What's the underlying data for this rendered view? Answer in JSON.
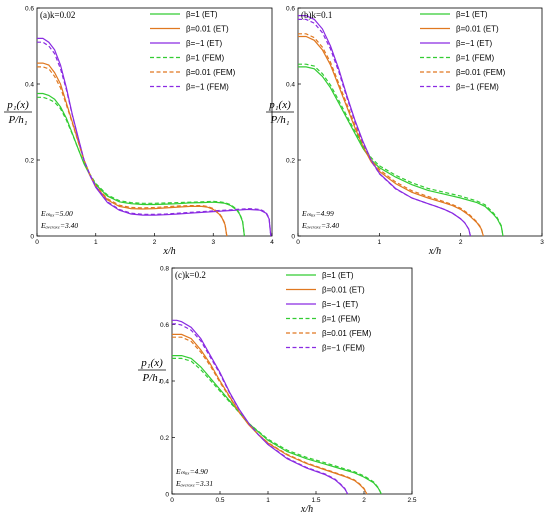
{
  "colors": {
    "beta_pos1": "#33cc33",
    "beta_001": "#e07820",
    "beta_neg1": "#8a2be2"
  },
  "chart_data": [
    {
      "type": "line",
      "title": "(a)k=0.02",
      "xlabel": "x/h",
      "ylabel_num": "p₁(x)",
      "ylabel_den": "P/h₁",
      "xlim": [
        0,
        4
      ],
      "ylim": [
        0,
        0.6
      ],
      "xticks": [
        "0",
        "1",
        "2",
        "3",
        "4"
      ],
      "yticks": [
        "0",
        "0.2",
        "0.4",
        "0.6"
      ],
      "emax": "Eₘₐₓ=5.00",
      "eavg": "Eₐᵥₑᵣₐₓₑ=3.40",
      "legend": [
        "β=1 (ET)",
        "β=0.01 (ET)",
        "β=−1 (ET)",
        "β=1 (FEM)",
        "β=0.01 (FEM)",
        "β=−1 (FEM)"
      ],
      "series": [
        {
          "name": "β=1 (ET)",
          "style": "solid",
          "color": "#33cc33",
          "x": [
            0,
            0.1,
            0.2,
            0.3,
            0.4,
            0.5,
            0.6,
            0.7,
            0.8,
            0.9,
            1.0,
            1.2,
            1.4,
            1.6,
            1.8,
            2.0,
            2.2,
            2.4,
            2.6,
            2.8,
            3.0,
            3.1,
            3.2,
            3.3,
            3.4,
            3.45,
            3.5,
            3.53
          ],
          "y": [
            0.375,
            0.375,
            0.37,
            0.36,
            0.34,
            0.31,
            0.27,
            0.23,
            0.19,
            0.16,
            0.135,
            0.105,
            0.09,
            0.085,
            0.083,
            0.083,
            0.084,
            0.085,
            0.087,
            0.088,
            0.089,
            0.088,
            0.086,
            0.08,
            0.068,
            0.057,
            0.038,
            0
          ]
        },
        {
          "name": "β=0.01 (ET)",
          "style": "solid",
          "color": "#e07820",
          "x": [
            0,
            0.1,
            0.2,
            0.3,
            0.4,
            0.5,
            0.6,
            0.7,
            0.8,
            0.9,
            1.0,
            1.2,
            1.4,
            1.6,
            1.8,
            2.0,
            2.2,
            2.4,
            2.6,
            2.8,
            2.9,
            3.0,
            3.1,
            3.15,
            3.2,
            3.23
          ],
          "y": [
            0.455,
            0.455,
            0.45,
            0.43,
            0.4,
            0.35,
            0.3,
            0.25,
            0.2,
            0.16,
            0.13,
            0.095,
            0.078,
            0.072,
            0.071,
            0.072,
            0.074,
            0.076,
            0.078,
            0.078,
            0.076,
            0.07,
            0.058,
            0.047,
            0.03,
            0
          ]
        },
        {
          "name": "β=−1 (ET)",
          "style": "solid",
          "color": "#8a2be2",
          "x": [
            0,
            0.1,
            0.2,
            0.3,
            0.4,
            0.5,
            0.6,
            0.7,
            0.8,
            0.9,
            1.0,
            1.2,
            1.4,
            1.6,
            1.8,
            2.0,
            2.2,
            2.4,
            2.6,
            2.8,
            3.0,
            3.2,
            3.4,
            3.6,
            3.8,
            3.9,
            3.95,
            3.98
          ],
          "y": [
            0.52,
            0.52,
            0.51,
            0.49,
            0.45,
            0.39,
            0.32,
            0.26,
            0.2,
            0.16,
            0.128,
            0.088,
            0.068,
            0.058,
            0.055,
            0.055,
            0.056,
            0.058,
            0.06,
            0.062,
            0.064,
            0.066,
            0.068,
            0.07,
            0.068,
            0.06,
            0.045,
            0
          ]
        },
        {
          "name": "β=1 (FEM)",
          "style": "dash",
          "color": "#33cc33",
          "x": [
            0,
            0.1,
            0.2,
            0.3,
            0.4,
            0.5,
            0.6,
            0.7,
            0.8,
            0.9,
            1.0,
            1.2,
            1.4,
            1.6,
            1.8,
            2.0,
            2.2,
            2.4,
            2.6,
            2.8,
            3.0,
            3.1,
            3.2,
            3.3,
            3.4,
            3.45,
            3.5,
            3.53
          ],
          "y": [
            0.365,
            0.365,
            0.36,
            0.352,
            0.335,
            0.305,
            0.268,
            0.23,
            0.192,
            0.163,
            0.138,
            0.108,
            0.093,
            0.088,
            0.086,
            0.086,
            0.087,
            0.088,
            0.089,
            0.09,
            0.091,
            0.09,
            0.088,
            0.082,
            0.07,
            0.059,
            0.04,
            0
          ]
        },
        {
          "name": "β=0.01 (FEM)",
          "style": "dash",
          "color": "#e07820",
          "x": [
            0,
            0.1,
            0.2,
            0.3,
            0.4,
            0.5,
            0.6,
            0.7,
            0.8,
            0.9,
            1.0,
            1.2,
            1.4,
            1.6,
            1.8,
            2.0,
            2.2,
            2.4,
            2.6,
            2.8,
            2.9,
            3.0,
            3.1,
            3.15,
            3.2,
            3.23
          ],
          "y": [
            0.445,
            0.445,
            0.44,
            0.42,
            0.39,
            0.345,
            0.297,
            0.248,
            0.2,
            0.162,
            0.132,
            0.098,
            0.081,
            0.075,
            0.074,
            0.075,
            0.077,
            0.079,
            0.08,
            0.08,
            0.078,
            0.072,
            0.06,
            0.049,
            0.032,
            0
          ]
        },
        {
          "name": "β=−1 (FEM)",
          "style": "dash",
          "color": "#8a2be2",
          "x": [
            0,
            0.1,
            0.2,
            0.3,
            0.4,
            0.5,
            0.6,
            0.7,
            0.8,
            0.9,
            1.0,
            1.2,
            1.4,
            1.6,
            1.8,
            2.0,
            2.2,
            2.4,
            2.6,
            2.8,
            3.0,
            3.2,
            3.4,
            3.6,
            3.8,
            3.9,
            3.95,
            3.98
          ],
          "y": [
            0.51,
            0.51,
            0.5,
            0.48,
            0.44,
            0.385,
            0.318,
            0.258,
            0.2,
            0.162,
            0.13,
            0.09,
            0.07,
            0.06,
            0.057,
            0.057,
            0.058,
            0.06,
            0.062,
            0.064,
            0.066,
            0.068,
            0.07,
            0.072,
            0.07,
            0.062,
            0.047,
            0
          ]
        }
      ]
    },
    {
      "type": "line",
      "title": "(b)k=0.1",
      "xlabel": "x/h",
      "ylabel_num": "p₁(x)",
      "ylabel_den": "P/h₁",
      "xlim": [
        0,
        3
      ],
      "ylim": [
        0,
        0.6
      ],
      "xticks": [
        "0",
        "1",
        "2",
        "3"
      ],
      "yticks": [
        "0",
        "0.2",
        "0.4",
        "0.6"
      ],
      "emax": "Eₘₐₓ=4.99",
      "eavg": "Eₐᵥₑᵣₐₓₑ=3.40",
      "legend": [
        "β=1 (ET)",
        "β=0.01 (ET)",
        "β=−1 (ET)",
        "β=1 (FEM)",
        "β=0.01 (FEM)",
        "β=−1 (FEM)"
      ],
      "series": [
        {
          "name": "β=1 (ET)",
          "style": "solid",
          "color": "#33cc33",
          "x": [
            0,
            0.1,
            0.2,
            0.3,
            0.4,
            0.5,
            0.6,
            0.7,
            0.8,
            0.9,
            1.0,
            1.2,
            1.4,
            1.6,
            1.8,
            2.0,
            2.2,
            2.3,
            2.4,
            2.45,
            2.5,
            2.52
          ],
          "y": [
            0.445,
            0.445,
            0.44,
            0.42,
            0.39,
            0.35,
            0.31,
            0.27,
            0.23,
            0.2,
            0.18,
            0.155,
            0.135,
            0.12,
            0.11,
            0.1,
            0.088,
            0.078,
            0.058,
            0.045,
            0.025,
            0
          ]
        },
        {
          "name": "β=0.01 (ET)",
          "style": "solid",
          "color": "#e07820",
          "x": [
            0,
            0.1,
            0.2,
            0.3,
            0.4,
            0.5,
            0.6,
            0.7,
            0.8,
            0.9,
            1.0,
            1.2,
            1.4,
            1.6,
            1.8,
            1.9,
            2.0,
            2.1,
            2.2,
            2.25,
            2.28
          ],
          "y": [
            0.525,
            0.525,
            0.515,
            0.49,
            0.45,
            0.395,
            0.34,
            0.285,
            0.235,
            0.195,
            0.17,
            0.138,
            0.115,
            0.1,
            0.087,
            0.08,
            0.07,
            0.055,
            0.035,
            0.02,
            0
          ]
        },
        {
          "name": "β=−1 (ET)",
          "style": "solid",
          "color": "#8a2be2",
          "x": [
            0,
            0.1,
            0.2,
            0.3,
            0.4,
            0.5,
            0.6,
            0.7,
            0.8,
            0.9,
            1.0,
            1.2,
            1.4,
            1.6,
            1.7,
            1.8,
            1.9,
            2.0,
            2.05,
            2.1,
            2.12
          ],
          "y": [
            0.58,
            0.58,
            0.57,
            0.545,
            0.5,
            0.44,
            0.37,
            0.305,
            0.248,
            0.2,
            0.165,
            0.125,
            0.1,
            0.085,
            0.078,
            0.07,
            0.06,
            0.045,
            0.035,
            0.018,
            0
          ]
        },
        {
          "name": "β=1 (FEM)",
          "style": "dash",
          "color": "#33cc33",
          "x": [
            0,
            0.1,
            0.2,
            0.3,
            0.4,
            0.5,
            0.6,
            0.7,
            0.8,
            0.9,
            1.0,
            1.2,
            1.4,
            1.6,
            1.8,
            2.0,
            2.2,
            2.3,
            2.4,
            2.45,
            2.5,
            2.52
          ],
          "y": [
            0.452,
            0.452,
            0.447,
            0.427,
            0.397,
            0.357,
            0.316,
            0.276,
            0.236,
            0.206,
            0.185,
            0.16,
            0.14,
            0.125,
            0.115,
            0.105,
            0.092,
            0.082,
            0.061,
            0.048,
            0.027,
            0
          ]
        },
        {
          "name": "β=0.01 (FEM)",
          "style": "dash",
          "color": "#e07820",
          "x": [
            0,
            0.1,
            0.2,
            0.3,
            0.4,
            0.5,
            0.6,
            0.7,
            0.8,
            0.9,
            1.0,
            1.2,
            1.4,
            1.6,
            1.8,
            1.9,
            2.0,
            2.1,
            2.2,
            2.25,
            2.28
          ],
          "y": [
            0.532,
            0.532,
            0.522,
            0.497,
            0.457,
            0.402,
            0.347,
            0.291,
            0.241,
            0.2,
            0.175,
            0.142,
            0.119,
            0.104,
            0.09,
            0.083,
            0.073,
            0.058,
            0.037,
            0.022,
            0
          ]
        },
        {
          "name": "β=−1 (FEM)",
          "style": "dash",
          "color": "#8a2be2",
          "x": [
            0,
            0.1,
            0.2,
            0.3,
            0.4,
            0.5,
            0.6,
            0.7,
            0.8,
            0.9,
            1.0,
            1.2,
            1.4,
            1.6,
            1.7,
            1.8,
            1.9,
            2.0,
            2.05,
            2.1,
            2.12
          ],
          "y": [
            0.57,
            0.57,
            0.56,
            0.535,
            0.492,
            0.433,
            0.365,
            0.301,
            0.245,
            0.198,
            0.164,
            0.124,
            0.1,
            0.085,
            0.078,
            0.07,
            0.06,
            0.045,
            0.035,
            0.018,
            0
          ]
        }
      ]
    },
    {
      "type": "line",
      "title": "(c)k=0.2",
      "xlabel": "x/h",
      "ylabel_num": "p₁(x)",
      "ylabel_den": "P/h₁",
      "xlim": [
        0,
        2.5
      ],
      "ylim": [
        0,
        0.8
      ],
      "xticks": [
        "0",
        "0.5",
        "1",
        "1.5",
        "2",
        "2.5"
      ],
      "yticks": [
        "0",
        "0.2",
        "0.4",
        "0.6",
        "0.8"
      ],
      "emax": "Eₘₐₓ=4.90",
      "eavg": "Eₐᵥₑᵣₐₓₑ=3.31",
      "legend": [
        "β=1 (ET)",
        "β=0.01 (ET)",
        "β=−1 (ET)",
        "β=1 (FEM)",
        "β=0.01 (FEM)",
        "β=−1 (FEM)"
      ],
      "series": [
        {
          "name": "β=1 (ET)",
          "style": "solid",
          "color": "#33cc33",
          "x": [
            0,
            0.05,
            0.1,
            0.2,
            0.3,
            0.4,
            0.5,
            0.6,
            0.7,
            0.8,
            0.9,
            1.0,
            1.2,
            1.4,
            1.6,
            1.8,
            1.9,
            2.0,
            2.1,
            2.15,
            2.18
          ],
          "y": [
            0.49,
            0.49,
            0.49,
            0.48,
            0.45,
            0.41,
            0.37,
            0.33,
            0.29,
            0.25,
            0.22,
            0.19,
            0.15,
            0.125,
            0.105,
            0.085,
            0.075,
            0.06,
            0.04,
            0.02,
            0
          ]
        },
        {
          "name": "β=0.01 (ET)",
          "style": "solid",
          "color": "#e07820",
          "x": [
            0,
            0.05,
            0.1,
            0.2,
            0.3,
            0.4,
            0.5,
            0.6,
            0.7,
            0.8,
            0.9,
            1.0,
            1.2,
            1.4,
            1.6,
            1.8,
            1.9,
            1.95,
            2.0,
            2.03
          ],
          "y": [
            0.565,
            0.565,
            0.565,
            0.55,
            0.51,
            0.46,
            0.4,
            0.345,
            0.29,
            0.245,
            0.21,
            0.18,
            0.138,
            0.108,
            0.085,
            0.062,
            0.048,
            0.035,
            0.018,
            0
          ]
        },
        {
          "name": "β=−1 (ET)",
          "style": "solid",
          "color": "#8a2be2",
          "x": [
            0,
            0.05,
            0.1,
            0.2,
            0.3,
            0.4,
            0.5,
            0.6,
            0.7,
            0.8,
            0.9,
            1.0,
            1.2,
            1.4,
            1.6,
            1.7,
            1.75,
            1.8,
            1.83
          ],
          "y": [
            0.615,
            0.615,
            0.61,
            0.59,
            0.55,
            0.49,
            0.43,
            0.36,
            0.3,
            0.25,
            0.21,
            0.175,
            0.125,
            0.092,
            0.068,
            0.05,
            0.035,
            0.018,
            0
          ]
        },
        {
          "name": "β=1 (FEM)",
          "style": "dash",
          "color": "#33cc33",
          "x": [
            0,
            0.05,
            0.1,
            0.2,
            0.3,
            0.4,
            0.5,
            0.6,
            0.7,
            0.8,
            0.9,
            1.0,
            1.2,
            1.4,
            1.6,
            1.8,
            1.9,
            2.0,
            2.1,
            2.15,
            2.18
          ],
          "y": [
            0.48,
            0.48,
            0.48,
            0.47,
            0.44,
            0.402,
            0.364,
            0.326,
            0.288,
            0.25,
            0.222,
            0.194,
            0.155,
            0.13,
            0.11,
            0.089,
            0.079,
            0.064,
            0.043,
            0.022,
            0
          ]
        },
        {
          "name": "β=0.01 (FEM)",
          "style": "dash",
          "color": "#e07820",
          "x": [
            0,
            0.05,
            0.1,
            0.2,
            0.3,
            0.4,
            0.5,
            0.6,
            0.7,
            0.8,
            0.9,
            1.0,
            1.2,
            1.4,
            1.6,
            1.8,
            1.9,
            1.95,
            2.0,
            2.03
          ],
          "y": [
            0.555,
            0.555,
            0.555,
            0.54,
            0.502,
            0.453,
            0.395,
            0.342,
            0.289,
            0.245,
            0.211,
            0.182,
            0.14,
            0.11,
            0.087,
            0.064,
            0.05,
            0.037,
            0.02,
            0
          ]
        },
        {
          "name": "β=−1 (FEM)",
          "style": "dash",
          "color": "#8a2be2",
          "x": [
            0,
            0.05,
            0.1,
            0.2,
            0.3,
            0.4,
            0.5,
            0.6,
            0.7,
            0.8,
            0.9,
            1.0,
            1.2,
            1.4,
            1.6,
            1.7,
            1.75,
            1.8,
            1.83
          ],
          "y": [
            0.602,
            0.602,
            0.598,
            0.58,
            0.542,
            0.484,
            0.425,
            0.357,
            0.298,
            0.249,
            0.21,
            0.176,
            0.127,
            0.094,
            0.07,
            0.052,
            0.037,
            0.02,
            0
          ]
        }
      ]
    }
  ]
}
